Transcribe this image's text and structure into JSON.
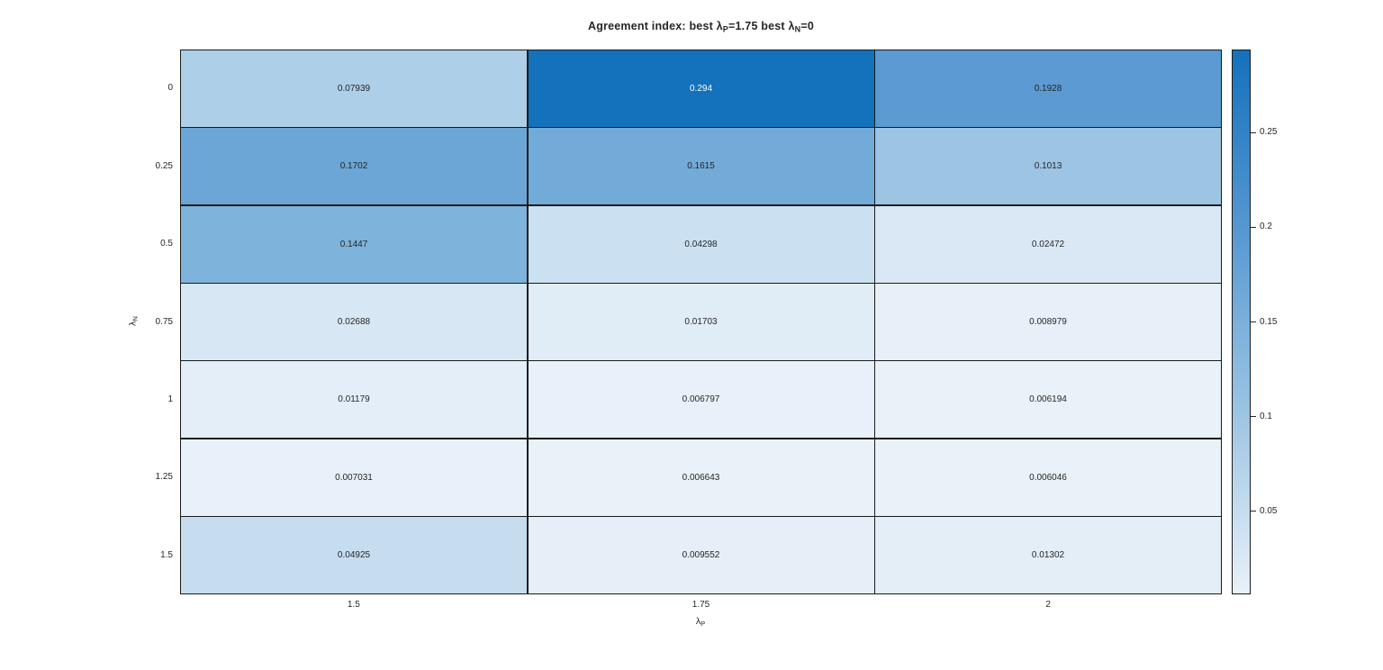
{
  "figure": {
    "background": "#ffffff"
  },
  "chart_data": {
    "type": "heatmap",
    "title": "Agreement index:  best λ{P}=1.75  best   λ{N}=0",
    "xlabel": "λ{P}",
    "ylabel": "λ{N}",
    "x_categories": [
      "1.5",
      "1.75",
      "2"
    ],
    "y_categories": [
      "0",
      "0.25",
      "0.5",
      "0.75",
      "1",
      "1.25",
      "1.5"
    ],
    "values": [
      [
        "0.07939",
        "0.294",
        "0.1928"
      ],
      [
        "0.1702",
        "0.1615",
        "0.1013"
      ],
      [
        "0.1447",
        "0.04298",
        "0.02472"
      ],
      [
        "0.02688",
        "0.01703",
        "0.008979"
      ],
      [
        "0.01179",
        "0.006797",
        "0.006194"
      ],
      [
        "0.007031",
        "0.006643",
        "0.006046"
      ],
      [
        "0.04925",
        "0.009552",
        "0.01302"
      ]
    ],
    "vmin": 0.006046,
    "vmax": 0.294,
    "colorbar_ticks": [
      0.05,
      0.1,
      0.15,
      0.2,
      0.25
    ],
    "colorbar_tick_labels": [
      "0.05",
      "0.1",
      "0.15",
      "0.2",
      "0.25"
    ],
    "colormap_stops": [
      {
        "t": 0,
        "color": "#e9f1f9"
      },
      {
        "t": 0.255,
        "color": "#aecfe8"
      },
      {
        "t": 0.331,
        "color": "#9cc4e3"
      },
      {
        "t": 0.482,
        "color": "#7eb3db"
      },
      {
        "t": 0.649,
        "color": "#5b9ad2"
      },
      {
        "t": 1,
        "color": "#1471bc"
      }
    ],
    "grid_color": "#1a1a1a",
    "text_color": "#262626",
    "dark_cell_text_color": "#ffffff",
    "dark_text_threshold": 0.72,
    "legend_position": "right-colorbar",
    "grid": true
  }
}
